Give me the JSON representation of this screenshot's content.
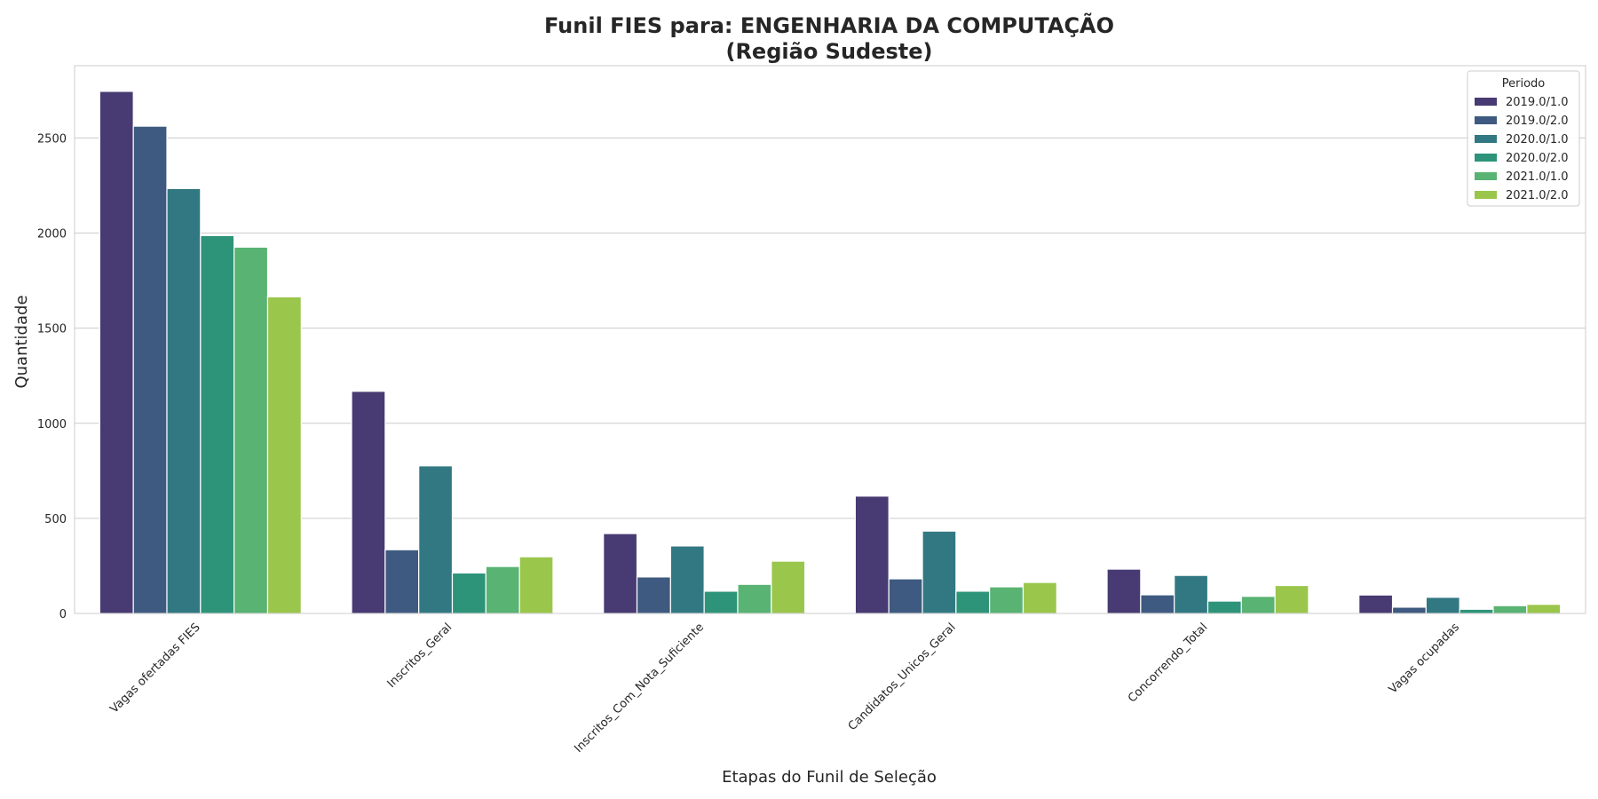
{
  "chart_data": {
    "type": "bar",
    "title_line1": "Funil FIES para: ENGENHARIA DA COMPUTAÇÃO",
    "title_line2": "(Região Sudeste)",
    "xlabel": "Etapas do Funil de Seleção",
    "ylabel": "Quantidade",
    "ylim": [
      0,
      2880
    ],
    "yticks": [
      0,
      500,
      1000,
      1500,
      2000,
      2500
    ],
    "grid": "y",
    "legend": {
      "title": "Periodo",
      "placement": "top-right"
    },
    "categories": [
      "Vagas ofertadas FIES",
      "Inscritos_Geral",
      "Inscritos_Com_Nota_Suficiente",
      "Candidatos_Unicos_Geral",
      "Concorrendo_Total",
      "Vagas ocupadas"
    ],
    "series": [
      {
        "name": "2019.0/1.0",
        "color": "#483a72",
        "values": [
          2745,
          1168,
          420,
          617,
          233,
          97
        ]
      },
      {
        "name": "2019.0/2.0",
        "color": "#3e5a80",
        "values": [
          2562,
          335,
          192,
          182,
          98,
          33
        ]
      },
      {
        "name": "2020.0/1.0",
        "color": "#327883",
        "values": [
          2234,
          776,
          355,
          433,
          200,
          85
        ]
      },
      {
        "name": "2020.0/2.0",
        "color": "#2d947a",
        "values": [
          1987,
          213,
          117,
          117,
          65,
          22
        ]
      },
      {
        "name": "2021.0/1.0",
        "color": "#59b372",
        "values": [
          1926,
          247,
          153,
          140,
          90,
          41
        ]
      },
      {
        "name": "2021.0/2.0",
        "color": "#9ac64c",
        "values": [
          1665,
          298,
          275,
          163,
          147,
          48
        ]
      }
    ]
  }
}
